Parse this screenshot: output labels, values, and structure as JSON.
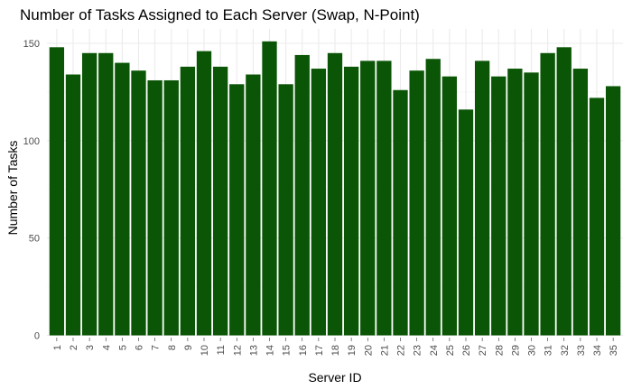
{
  "chart_data": {
    "type": "bar",
    "title": "Number of Tasks Assigned to Each Server (Swap, N-Point)",
    "xlabel": "Server ID",
    "ylabel": "Number of Tasks",
    "categories": [
      "1",
      "2",
      "3",
      "4",
      "5",
      "6",
      "7",
      "8",
      "9",
      "10",
      "11",
      "12",
      "13",
      "14",
      "15",
      "16",
      "17",
      "18",
      "19",
      "20",
      "21",
      "22",
      "23",
      "24",
      "25",
      "26",
      "27",
      "28",
      "29",
      "30",
      "31",
      "32",
      "33",
      "34",
      "35"
    ],
    "values": [
      148,
      134,
      145,
      145,
      140,
      136,
      131,
      131,
      138,
      146,
      138,
      129,
      134,
      151,
      129,
      144,
      137,
      145,
      138,
      141,
      141,
      126,
      136,
      142,
      133,
      116,
      141,
      133,
      137,
      135,
      145,
      148,
      137,
      122,
      128
    ],
    "ylim": [
      0,
      158
    ],
    "yticks": [
      0,
      50,
      100,
      150
    ],
    "grid": true,
    "bar_color": "#0b5606",
    "legend": "none"
  }
}
